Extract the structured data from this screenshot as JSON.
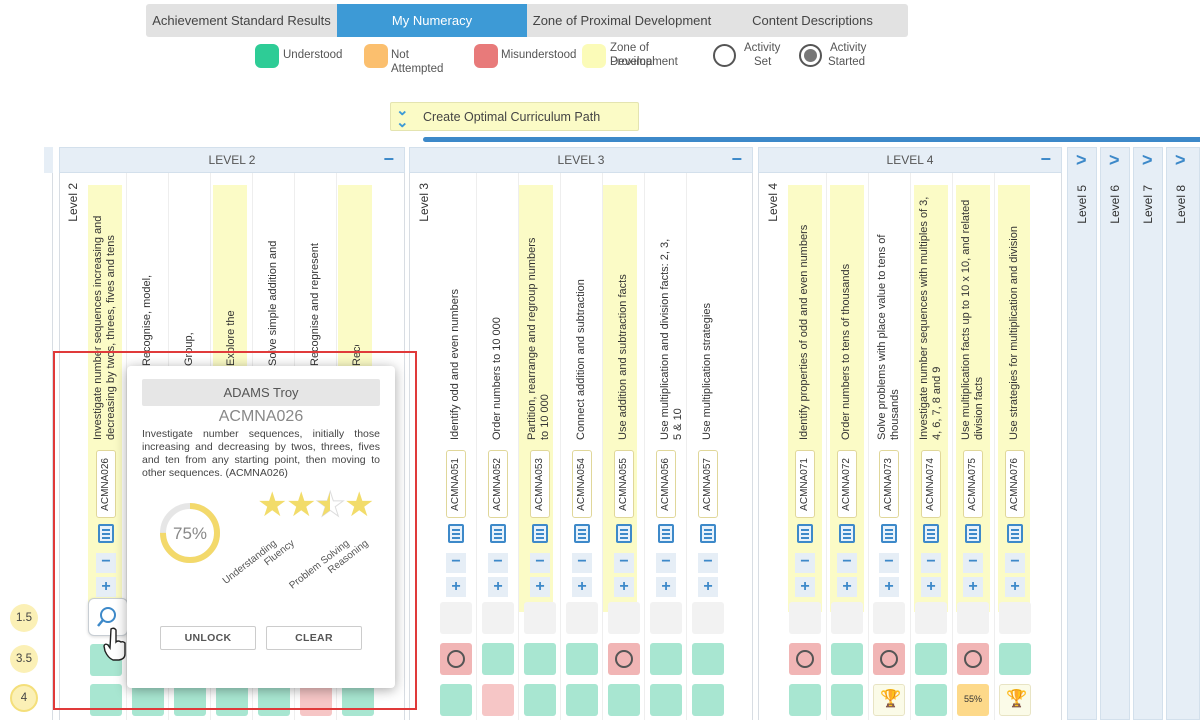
{
  "tabs": [
    {
      "label": "Achievement Standard Results",
      "active": false
    },
    {
      "label": "My Numeracy",
      "active": true
    },
    {
      "label": "Zone of Proximal Development",
      "active": false
    },
    {
      "label": "Content Descriptions",
      "active": false
    }
  ],
  "legend": {
    "understood": "Understood",
    "not_attempted": "Not Attempted",
    "misunderstood": "Misunderstood",
    "zpd_line1": "Zone of Proximal",
    "zpd_line2": "Development",
    "activity_set_line1": "Activity",
    "activity_set_line2": "Set",
    "activity_started_line1": "Activity",
    "activity_started_line2": "Started",
    "colors": {
      "understood": "#2ecc96",
      "not_attempted": "#fbbf6e",
      "misunderstood": "#e87a7a",
      "zpd": "#fbfbb8"
    }
  },
  "optimal_button": "Create Optimal Curriculum Path",
  "levels": [
    {
      "header": "LEVEL 2",
      "label": "Level 2"
    },
    {
      "header": "LEVEL 3",
      "label": "Level 3"
    },
    {
      "header": "LEVEL 4",
      "label": "Level 4"
    }
  ],
  "collapsed_levels": [
    "Level 5",
    "Level 6",
    "Level 7",
    "Level 8"
  ],
  "level2_columns": [
    {
      "desc": "Investigate number sequences increasing and decreasing by twos, threes, fives and tens",
      "code": "ACMNA026"
    },
    {
      "desc": "Recognise, model, represent and order numbers",
      "code": ""
    },
    {
      "desc": "Group, partition and rearrange addition numbers",
      "code": ""
    },
    {
      "desc": "Explore the connection between addition and subtraction",
      "code": ""
    },
    {
      "desc": "Solve simple addition and subtraction problems",
      "code": ""
    },
    {
      "desc": "Recognise and represent multiplication as repeated addition",
      "code": ""
    },
    {
      "desc": "Recognise and represent division",
      "code": ""
    }
  ],
  "level3_columns": [
    {
      "desc": "Identify odd and even numbers",
      "code": "ACMNA051"
    },
    {
      "desc": "Order numbers to 10 000",
      "code": "ACMNA052"
    },
    {
      "desc": "Partition, rearrange and regroup numbers to 10 000",
      "code": "ACMNA053"
    },
    {
      "desc": "Connect addition and subtraction",
      "code": "ACMNA054"
    },
    {
      "desc": "Use addition and subtraction facts",
      "code": "ACMNA055"
    },
    {
      "desc": "Use multiplication and division facts: 2, 3, 5 & 10",
      "code": "ACMNA056"
    },
    {
      "desc": "Use multiplication strategies",
      "code": "ACMNA057"
    }
  ],
  "level4_columns": [
    {
      "desc": "Identify properties of odd and even numbers",
      "code": "ACMNA071"
    },
    {
      "desc": "Order numbers to tens of thousands",
      "code": "ACMNA072"
    },
    {
      "desc": "Solve problems with place value to tens of thousands",
      "code": "ACMNA073"
    },
    {
      "desc": "Investigate number sequences with multiples of 3, 4, 6, 7, 8 and 9",
      "code": "ACMNA074"
    },
    {
      "desc": "Use multiplication facts up to 10 x 10, and related division facts",
      "code": "ACMNA075"
    },
    {
      "desc": "Use strategies for multiplication and division",
      "code": "ACMNA076"
    }
  ],
  "row_labels": [
    "1.5",
    "3.5",
    "4"
  ],
  "cell_pct": "55%",
  "popup": {
    "student": "ADAMS Troy",
    "code": "ACMNA026",
    "description": "Investigate number sequences, initially those increasing and decreasing by twos, threes, fives and ten from any starting point, then moving to other sequences. (ACMNA026)",
    "percent_text": "75%",
    "percent": 0.75,
    "stars_filled": 2.5,
    "stars_total": 4,
    "skills": [
      "Understanding",
      "Fluency",
      "Problem Solving",
      "Reasoning"
    ],
    "unlock": "UNLOCK",
    "clear": "CLEAR"
  }
}
